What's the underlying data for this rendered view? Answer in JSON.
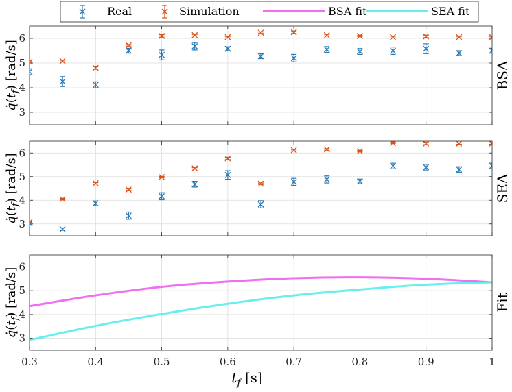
{
  "colors": {
    "real": "#2a7ab5",
    "simulation": "#d9541a",
    "bsa_fit": "#f06ef0",
    "sea_fit": "#69eef0"
  },
  "legend": {
    "real": "Real",
    "simulation": "Simulation",
    "bsa_fit": "BSA fit",
    "sea_fit": "SEA fit"
  },
  "xlabel": "t_f [s]",
  "ylabel_text": "q̇(t_f) [rad/s]",
  "chart_data": [
    {
      "type": "scatter",
      "panel_label": "BSA",
      "ylim": [
        2.5,
        6.5
      ],
      "xlim": [
        0.3,
        1.0
      ],
      "yticks": [
        3,
        4,
        5,
        6
      ],
      "xticks": [
        0.3,
        0.4,
        0.5,
        0.6,
        0.7,
        0.8,
        0.9,
        1.0
      ],
      "grid": true,
      "x": [
        0.3,
        0.35,
        0.4,
        0.45,
        0.5,
        0.55,
        0.6,
        0.65,
        0.7,
        0.75,
        0.8,
        0.85,
        0.9,
        0.95,
        1.0
      ],
      "series": [
        {
          "name": "Real",
          "values": [
            4.65,
            4.25,
            4.12,
            5.5,
            5.33,
            5.68,
            5.58,
            5.28,
            5.2,
            5.55,
            5.47,
            5.5,
            5.58,
            5.4,
            5.5
          ],
          "err": [
            0.12,
            0.2,
            0.12,
            0.1,
            0.2,
            0.15,
            0.08,
            0.1,
            0.15,
            0.12,
            0.12,
            0.15,
            0.2,
            0.1,
            0.1
          ]
        },
        {
          "name": "Simulation",
          "values": [
            5.05,
            5.08,
            4.8,
            5.72,
            6.1,
            6.13,
            6.05,
            6.23,
            6.25,
            6.13,
            6.1,
            6.05,
            6.08,
            6.05,
            6.05
          ],
          "err": [
            0.03,
            0.03,
            0.05,
            0.03,
            0.05,
            0.03,
            0.03,
            0.03,
            0.05,
            0.03,
            0.03,
            0.03,
            0.05,
            0.03,
            0.03
          ]
        }
      ]
    },
    {
      "type": "scatter",
      "panel_label": "SEA",
      "ylim": [
        2.5,
        6.5
      ],
      "xlim": [
        0.3,
        1.0
      ],
      "yticks": [
        3,
        4,
        5,
        6
      ],
      "xticks": [
        0.3,
        0.4,
        0.5,
        0.6,
        0.7,
        0.8,
        0.9,
        1.0
      ],
      "grid": true,
      "x": [
        0.3,
        0.35,
        0.4,
        0.45,
        0.5,
        0.55,
        0.6,
        0.65,
        0.7,
        0.75,
        0.8,
        0.85,
        0.9,
        0.95,
        1.0
      ],
      "series": [
        {
          "name": "Real",
          "values": [
            3.02,
            2.78,
            3.87,
            3.35,
            4.17,
            4.68,
            5.07,
            3.83,
            4.78,
            4.88,
            4.8,
            5.45,
            5.4,
            5.3,
            5.45
          ],
          "err": [
            0.05,
            0.05,
            0.1,
            0.15,
            0.15,
            0.12,
            0.18,
            0.15,
            0.15,
            0.15,
            0.1,
            0.12,
            0.12,
            0.12,
            0.12
          ]
        },
        {
          "name": "Simulation",
          "values": [
            3.08,
            4.05,
            4.72,
            4.45,
            4.98,
            5.35,
            5.77,
            4.7,
            6.12,
            6.15,
            6.08,
            6.43,
            6.4,
            6.4,
            6.4
          ],
          "err": [
            0.03,
            0.03,
            0.03,
            0.03,
            0.03,
            0.03,
            0.05,
            0.03,
            0.03,
            0.03,
            0.03,
            0.03,
            0.05,
            0.03,
            0.03
          ]
        }
      ]
    },
    {
      "type": "line",
      "panel_label": "Fit",
      "ylim": [
        2.5,
        6.5
      ],
      "xlim": [
        0.3,
        1.0
      ],
      "yticks": [
        3,
        4,
        5,
        6
      ],
      "xticks": [
        0.3,
        0.4,
        0.5,
        0.6,
        0.7,
        0.8,
        0.9,
        1.0
      ],
      "grid": true,
      "x": [
        0.3,
        0.4,
        0.5,
        0.6,
        0.7,
        0.8,
        0.9,
        1.0
      ],
      "series": [
        {
          "name": "BSA fit",
          "values": [
            4.35,
            4.8,
            5.16,
            5.38,
            5.52,
            5.56,
            5.5,
            5.35
          ]
        },
        {
          "name": "SEA fit",
          "values": [
            2.93,
            3.52,
            4.02,
            4.45,
            4.8,
            5.05,
            5.25,
            5.35
          ]
        }
      ]
    }
  ]
}
